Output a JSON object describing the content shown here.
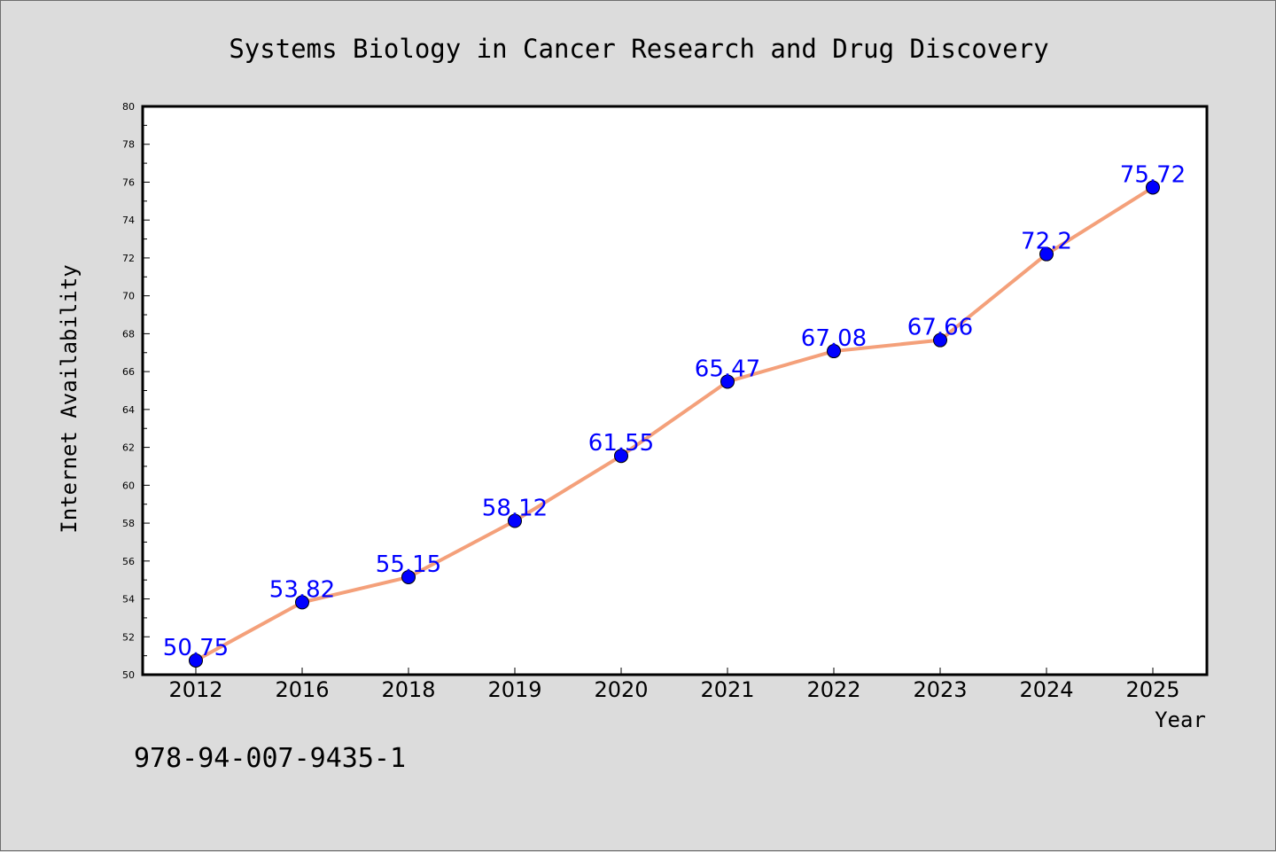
{
  "chart_data": {
    "type": "line",
    "title": "Systems Biology in Cancer Research and Drug Discovery",
    "xlabel": "Year",
    "ylabel": "Internet Availability",
    "categories": [
      "2012",
      "2016",
      "2018",
      "2019",
      "2020",
      "2021",
      "2022",
      "2023",
      "2024",
      "2025"
    ],
    "series": [
      {
        "values": [
          50.75,
          53.82,
          55.15,
          58.12,
          61.55,
          65.47,
          67.08,
          67.66,
          72.2,
          75.72
        ],
        "labels": [
          "50.75",
          "53.82",
          "55.15",
          "58.12",
          "61.55",
          "65.47",
          "67.08",
          "67.66",
          "72.2",
          "75.72"
        ],
        "line_color": "#f4a07a",
        "marker_color": "#0000ff"
      }
    ],
    "ylim": [
      50,
      80
    ],
    "yticks": [
      "50",
      "52",
      "54",
      "56",
      "58",
      "60",
      "62",
      "64",
      "66",
      "68",
      "70",
      "72",
      "74",
      "76",
      "78",
      "80"
    ],
    "grid": false,
    "legend": "none"
  },
  "caption": "978-94-007-9435-1",
  "colors": {
    "background": "#dcdcdc",
    "plot_background": "#ffffff",
    "line": "#f4a07a",
    "marker": "#0000ff",
    "data_label": "#0000ff"
  }
}
